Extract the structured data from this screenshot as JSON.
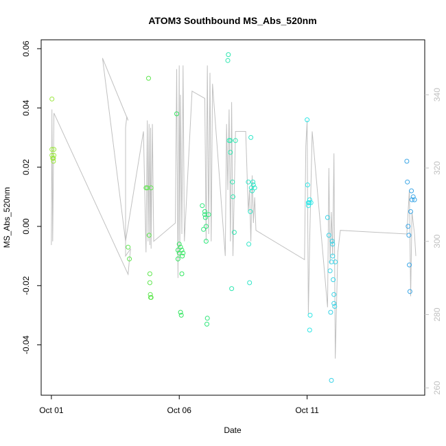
{
  "chart_data": {
    "type": "scatter",
    "title": "ATOM3 Southbound MS_Abs_520nm",
    "xlabel": "Date",
    "ylabel": "MS_Abs_520nm",
    "x_ticks": [
      {
        "label": "Oct 01",
        "value": 1.0
      },
      {
        "label": "Oct 06",
        "value": 6.0
      },
      {
        "label": "Oct 11",
        "value": 11.0
      }
    ],
    "xlim": [
      0.6,
      15.6
    ],
    "ylim": [
      -0.057,
      0.063
    ],
    "y_ticks": [
      -0.04,
      -0.02,
      0.0,
      0.02,
      0.04,
      0.06
    ],
    "y_tick_labels": [
      "-0.04",
      "-0.02",
      "0.00",
      "0.02",
      "0.04",
      "0.06"
    ],
    "y2_label": "",
    "y2lim": [
      258,
      355
    ],
    "y2_ticks": [
      260,
      280,
      300,
      320,
      340
    ],
    "y2_tick_labels": [
      "260",
      "280",
      "300",
      "320",
      "340"
    ],
    "grid": false,
    "colors": {
      "line": "#c0c0c0",
      "axis": "#000000",
      "right_axis": "#c0c0c0"
    },
    "line_series": [
      [
        1.0,
        299
      ],
      [
        1.02,
        336
      ],
      [
        1.05,
        300
      ],
      [
        1.1,
        335
      ],
      [
        4.0,
        291
      ],
      [
        4.05,
        295
      ],
      [
        4.1,
        298
      ],
      [
        3.9,
        296
      ],
      [
        3.9,
        331
      ],
      [
        3.95,
        334
      ],
      [
        4.0,
        333
      ],
      [
        3.0,
        350
      ],
      [
        3.9,
        300
      ],
      [
        4.6,
        330
      ],
      [
        4.7,
        297
      ],
      [
        4.75,
        333
      ],
      [
        4.78,
        300
      ],
      [
        4.82,
        332
      ],
      [
        4.85,
        299
      ],
      [
        4.88,
        331
      ],
      [
        4.9,
        298
      ],
      [
        4.95,
        332
      ],
      [
        5.0,
        300
      ],
      [
        5.85,
        305
      ],
      [
        5.9,
        347
      ],
      [
        5.95,
        290
      ],
      [
        6.0,
        348
      ],
      [
        6.02,
        295
      ],
      [
        6.05,
        340
      ],
      [
        6.1,
        302
      ],
      [
        6.15,
        348
      ],
      [
        6.2,
        300
      ],
      [
        6.5,
        341
      ],
      [
        7.0,
        339
      ],
      [
        7.05,
        300
      ],
      [
        7.1,
        348
      ],
      [
        7.15,
        302
      ],
      [
        7.2,
        346
      ],
      [
        7.25,
        300
      ],
      [
        7.3,
        343
      ],
      [
        7.8,
        296
      ],
      [
        7.85,
        332
      ],
      [
        7.9,
        314
      ],
      [
        7.95,
        336
      ],
      [
        8.0,
        300
      ],
      [
        8.05,
        338
      ],
      [
        8.1,
        296
      ],
      [
        8.2,
        330
      ],
      [
        8.6,
        330
      ],
      [
        8.7,
        308
      ],
      [
        8.75,
        314
      ],
      [
        8.8,
        300
      ],
      [
        8.85,
        318
      ],
      [
        8.9,
        305
      ],
      [
        8.95,
        312
      ],
      [
        9.0,
        303
      ],
      [
        10.9,
        295
      ],
      [
        10.95,
        326
      ],
      [
        11.0,
        333
      ],
      [
        11.05,
        280
      ],
      [
        11.1,
        300
      ],
      [
        11.2,
        330
      ],
      [
        11.8,
        282
      ],
      [
        11.85,
        320
      ],
      [
        11.9,
        294
      ],
      [
        11.95,
        308
      ],
      [
        12.0,
        296
      ],
      [
        12.05,
        324
      ],
      [
        12.1,
        268
      ],
      [
        12.2,
        297
      ],
      [
        12.3,
        303
      ],
      [
        14.9,
        302
      ],
      [
        15.0,
        314
      ],
      [
        15.05,
        285
      ],
      [
        15.1,
        308
      ],
      [
        15.2,
        302
      ],
      [
        15.25,
        296
      ]
    ],
    "series": [
      {
        "color": "#99e63b",
        "x": [
          1.02,
          1.02,
          1.02,
          1.05,
          1.08,
          1.08,
          1.1,
          1.1
        ],
        "y": [
          0.043,
          0.026,
          0.024,
          0.023,
          0.022,
          0.023,
          0.024,
          0.026
        ]
      },
      {
        "color": "#5ee64e",
        "x": [
          4.0,
          4.05,
          4.7,
          4.75,
          4.8,
          4.82,
          4.85,
          4.85,
          4.87,
          4.88,
          4.9,
          4.9
        ],
        "y": [
          -0.007,
          -0.011,
          0.013,
          0.013,
          0.05,
          -0.003,
          -0.016,
          -0.019,
          -0.023,
          -0.024,
          -0.024,
          0.013
        ]
      },
      {
        "color": "#33e660",
        "x": [
          5.9,
          5.95,
          5.95,
          6.0,
          6.0,
          6.05,
          6.05,
          6.08,
          6.1,
          6.1,
          6.12,
          6.15
        ],
        "y": [
          0.038,
          -0.008,
          -0.011,
          -0.009,
          -0.006,
          -0.007,
          -0.029,
          -0.03,
          -0.016,
          -0.008,
          -0.01,
          -0.009
        ]
      },
      {
        "color": "#2ee67a",
        "x": [
          6.9,
          6.95,
          7.0,
          7.0,
          7.02,
          7.05,
          7.05,
          7.08,
          7.1,
          7.15
        ],
        "y": [
          0.007,
          -0.001,
          0.005,
          0.004,
          0.003,
          0.0,
          -0.005,
          -0.033,
          -0.031,
          0.004
        ]
      },
      {
        "color": "#2ee6b0",
        "x": [
          7.9,
          7.92,
          7.95,
          8.0,
          8.0,
          8.05,
          8.08,
          8.1,
          8.15,
          8.2
        ],
        "y": [
          0.056,
          0.058,
          0.029,
          0.025,
          0.029,
          -0.021,
          0.015,
          0.01,
          -0.002,
          0.029
        ]
      },
      {
        "color": "#2ee6c8",
        "x": [
          8.7,
          8.72,
          8.75,
          8.78,
          8.8,
          8.82,
          8.85,
          8.88,
          8.9,
          8.95
        ],
        "y": [
          0.015,
          -0.006,
          -0.019,
          0.005,
          0.03,
          0.013,
          0.012,
          0.015,
          0.014,
          0.013
        ]
      },
      {
        "color": "#2ee6e6",
        "x": [
          11.0,
          11.02,
          11.05,
          11.05,
          11.08,
          11.1,
          11.1,
          11.12,
          11.15
        ],
        "y": [
          0.036,
          0.014,
          0.007,
          0.008,
          0.008,
          0.009,
          -0.035,
          -0.03,
          0.008
        ]
      },
      {
        "color": "#38d2e6",
        "x": [
          11.8,
          11.85,
          11.9,
          11.92,
          11.95,
          11.95,
          11.98,
          12.0,
          12.0,
          12.02,
          12.05,
          12.05,
          12.08,
          12.1
        ],
        "y": [
          0.003,
          -0.003,
          -0.015,
          -0.029,
          -0.012,
          -0.052,
          -0.005,
          -0.006,
          -0.01,
          -0.018,
          -0.023,
          -0.026,
          -0.027,
          -0.012
        ]
      },
      {
        "color": "#3ba6e6",
        "x": [
          14.9,
          14.92,
          14.95,
          14.98,
          15.0,
          15.02,
          15.05,
          15.08,
          15.1,
          15.15,
          15.2
        ],
        "y": [
          0.022,
          0.015,
          0.0,
          -0.003,
          -0.013,
          -0.022,
          0.005,
          0.012,
          0.009,
          0.01,
          0.009
        ]
      }
    ]
  }
}
